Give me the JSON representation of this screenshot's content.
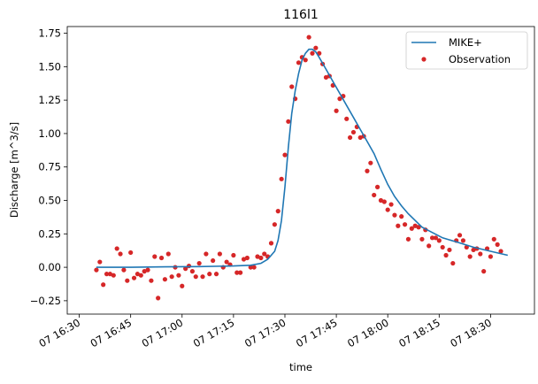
{
  "chart_data": {
    "type": "line",
    "title": "116l1",
    "xlabel": "time",
    "ylabel": "Discharge [m^3/s]",
    "x_ticks": [
      "07 16:30",
      "07 16:45",
      "07 17:00",
      "07 17:15",
      "07 17:30",
      "07 17:45",
      "07 18:00",
      "07 18:15",
      "07 18:30"
    ],
    "y_ticks": [
      "−0.25",
      "0.00",
      "0.25",
      "0.50",
      "0.75",
      "1.00",
      "1.25",
      "1.50",
      "1.75"
    ],
    "xlim_minutes_after_16_30": [
      -3.5,
      132.8
    ],
    "ylim": [
      -0.35,
      1.8
    ],
    "legend": {
      "placement": "top-right",
      "entries": [
        "MIKE+",
        "Observation"
      ]
    },
    "colors": {
      "model": "#1f77b4",
      "observation": "#d62728"
    },
    "series": [
      {
        "name": "MIKE+",
        "kind": "line",
        "points": [
          [
            "16:35",
            0.0
          ],
          [
            "16:45",
            0.0
          ],
          [
            "16:55",
            0.003
          ],
          [
            "17:05",
            0.005
          ],
          [
            "17:15",
            0.01
          ],
          [
            "17:20",
            0.015
          ],
          [
            "17:23",
            0.03
          ],
          [
            "17:25",
            0.06
          ],
          [
            "17:27",
            0.12
          ],
          [
            "17:28",
            0.2
          ],
          [
            "17:29",
            0.35
          ],
          [
            "17:30",
            0.6
          ],
          [
            "17:31",
            0.9
          ],
          [
            "17:32",
            1.15
          ],
          [
            "17:33",
            1.32
          ],
          [
            "17:34",
            1.45
          ],
          [
            "17:35",
            1.55
          ],
          [
            "17:36",
            1.6
          ],
          [
            "17:37",
            1.63
          ],
          [
            "17:38",
            1.63
          ],
          [
            "17:39",
            1.61
          ],
          [
            "17:40",
            1.57
          ],
          [
            "17:42",
            1.48
          ],
          [
            "17:44",
            1.39
          ],
          [
            "17:46",
            1.3
          ],
          [
            "17:48",
            1.21
          ],
          [
            "17:50",
            1.12
          ],
          [
            "17:52",
            1.03
          ],
          [
            "17:54",
            0.94
          ],
          [
            "17:56",
            0.85
          ],
          [
            "17:58",
            0.73
          ],
          [
            "18:00",
            0.62
          ],
          [
            "18:02",
            0.53
          ],
          [
            "18:04",
            0.46
          ],
          [
            "18:06",
            0.4
          ],
          [
            "18:08",
            0.35
          ],
          [
            "18:10",
            0.3
          ],
          [
            "18:13",
            0.26
          ],
          [
            "18:16",
            0.22
          ],
          [
            "18:20",
            0.19
          ],
          [
            "18:25",
            0.15
          ],
          [
            "18:30",
            0.12
          ],
          [
            "18:35",
            0.09
          ]
        ]
      },
      {
        "name": "Observation",
        "kind": "scatter",
        "points": [
          [
            "16:35",
            -0.02
          ],
          [
            "16:36",
            0.04
          ],
          [
            "16:37",
            -0.13
          ],
          [
            "16:38",
            -0.05
          ],
          [
            "16:39",
            -0.05
          ],
          [
            "16:40",
            -0.06
          ],
          [
            "16:41",
            0.14
          ],
          [
            "16:42",
            0.1
          ],
          [
            "16:43",
            -0.02
          ],
          [
            "16:44",
            -0.1
          ],
          [
            "16:45",
            0.11
          ],
          [
            "16:46",
            -0.08
          ],
          [
            "16:47",
            -0.05
          ],
          [
            "16:48",
            -0.06
          ],
          [
            "16:49",
            -0.03
          ],
          [
            "16:50",
            -0.02
          ],
          [
            "16:51",
            -0.1
          ],
          [
            "16:52",
            0.08
          ],
          [
            "16:53",
            -0.23
          ],
          [
            "16:54",
            0.07
          ],
          [
            "16:55",
            -0.09
          ],
          [
            "16:56",
            0.1
          ],
          [
            "16:57",
            -0.07
          ],
          [
            "16:58",
            0.0
          ],
          [
            "16:59",
            -0.06
          ],
          [
            "17:00",
            -0.14
          ],
          [
            "17:01",
            -0.01
          ],
          [
            "17:02",
            0.01
          ],
          [
            "17:03",
            -0.03
          ],
          [
            "17:04",
            -0.07
          ],
          [
            "17:05",
            0.03
          ],
          [
            "17:06",
            -0.07
          ],
          [
            "17:07",
            0.1
          ],
          [
            "17:08",
            -0.05
          ],
          [
            "17:09",
            0.05
          ],
          [
            "17:10",
            -0.05
          ],
          [
            "17:11",
            0.1
          ],
          [
            "17:12",
            0.0
          ],
          [
            "17:13",
            0.04
          ],
          [
            "17:14",
            0.02
          ],
          [
            "17:15",
            0.09
          ],
          [
            "17:16",
            -0.04
          ],
          [
            "17:17",
            -0.04
          ],
          [
            "17:18",
            0.06
          ],
          [
            "17:19",
            0.07
          ],
          [
            "17:20",
            0.0
          ],
          [
            "17:21",
            0.0
          ],
          [
            "17:22",
            0.08
          ],
          [
            "17:23",
            0.07
          ],
          [
            "17:24",
            0.1
          ],
          [
            "17:25",
            0.08
          ],
          [
            "17:26",
            0.18
          ],
          [
            "17:27",
            0.32
          ],
          [
            "17:28",
            0.42
          ],
          [
            "17:29",
            0.66
          ],
          [
            "17:30",
            0.84
          ],
          [
            "17:31",
            1.09
          ],
          [
            "17:32",
            1.35
          ],
          [
            "17:33",
            1.26
          ],
          [
            "17:34",
            1.53
          ],
          [
            "17:35",
            1.57
          ],
          [
            "17:36",
            1.55
          ],
          [
            "17:37",
            1.72
          ],
          [
            "17:38",
            1.6
          ],
          [
            "17:39",
            1.64
          ],
          [
            "17:40",
            1.6
          ],
          [
            "17:41",
            1.52
          ],
          [
            "17:42",
            1.42
          ],
          [
            "17:43",
            1.43
          ],
          [
            "17:44",
            1.36
          ],
          [
            "17:45",
            1.17
          ],
          [
            "17:46",
            1.26
          ],
          [
            "17:47",
            1.28
          ],
          [
            "17:48",
            1.11
          ],
          [
            "17:49",
            0.97
          ],
          [
            "17:50",
            1.01
          ],
          [
            "17:51",
            1.05
          ],
          [
            "17:52",
            0.97
          ],
          [
            "17:53",
            0.98
          ],
          [
            "17:54",
            0.72
          ],
          [
            "17:55",
            0.78
          ],
          [
            "17:56",
            0.54
          ],
          [
            "17:57",
            0.6
          ],
          [
            "17:58",
            0.5
          ],
          [
            "17:59",
            0.49
          ],
          [
            "18:00",
            0.43
          ],
          [
            "18:01",
            0.47
          ],
          [
            "18:02",
            0.39
          ],
          [
            "18:03",
            0.31
          ],
          [
            "18:04",
            0.38
          ],
          [
            "18:05",
            0.32
          ],
          [
            "18:06",
            0.21
          ],
          [
            "18:07",
            0.29
          ],
          [
            "18:08",
            0.31
          ],
          [
            "18:09",
            0.3
          ],
          [
            "18:10",
            0.21
          ],
          [
            "18:11",
            0.28
          ],
          [
            "18:12",
            0.16
          ],
          [
            "18:13",
            0.22
          ],
          [
            "18:14",
            0.22
          ],
          [
            "18:15",
            0.2
          ],
          [
            "18:16",
            0.15
          ],
          [
            "18:17",
            0.09
          ],
          [
            "18:18",
            0.13
          ],
          [
            "18:19",
            0.03
          ],
          [
            "18:20",
            0.2
          ],
          [
            "18:21",
            0.24
          ],
          [
            "18:22",
            0.2
          ],
          [
            "18:23",
            0.15
          ],
          [
            "18:24",
            0.08
          ],
          [
            "18:25",
            0.13
          ],
          [
            "18:26",
            0.14
          ],
          [
            "18:27",
            0.1
          ],
          [
            "18:28",
            -0.03
          ],
          [
            "18:29",
            0.14
          ],
          [
            "18:30",
            0.08
          ],
          [
            "18:31",
            0.21
          ],
          [
            "18:32",
            0.17
          ],
          [
            "18:33",
            0.12
          ]
        ]
      }
    ]
  }
}
